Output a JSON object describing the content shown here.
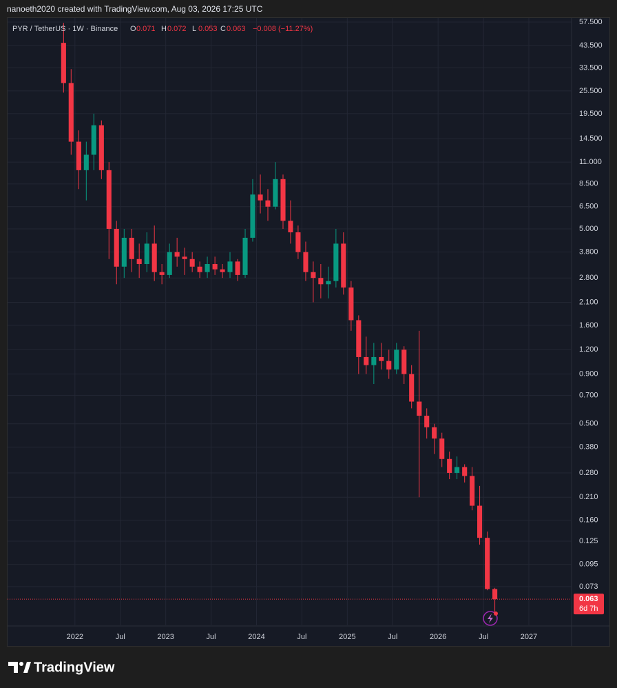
{
  "header": {
    "text": "nanoeth2020 created with TradingView.com, Aug 03, 2026 17:25 UTC"
  },
  "footer": {
    "logo": "TradingView"
  },
  "chart_data": {
    "type": "candlestick",
    "symbol": "PYR / TetherUS · 1W · Binance",
    "ohlc_legend": [
      {
        "label": "O",
        "value": 0.071
      },
      {
        "label": "H",
        "value": 0.072
      },
      {
        "label": "L",
        "value": 0.053
      },
      {
        "label": "C",
        "value": 0.063
      }
    ],
    "change": "−0.008 (−11.27%)",
    "last_price": 0.063,
    "countdown": "6d 7h",
    "log_scale": true,
    "grid": true,
    "up_color": "#089981",
    "down_color": "#f23645",
    "xlim": [
      2021.258,
      2027.47
    ],
    "ylim": [
      0.049,
      60.9
    ],
    "xticks": [
      {
        "value": 2022,
        "label": "2022"
      },
      {
        "value": 2022.5,
        "label": "Jul"
      },
      {
        "value": 2023,
        "label": "2023"
      },
      {
        "value": 2023.5,
        "label": "Jul"
      },
      {
        "value": 2024,
        "label": "2024"
      },
      {
        "value": 2024.5,
        "label": "Jul"
      },
      {
        "value": 2025,
        "label": "2025"
      },
      {
        "value": 2025.5,
        "label": "Jul"
      },
      {
        "value": 2026,
        "label": "2026"
      },
      {
        "value": 2026.5,
        "label": "Jul"
      },
      {
        "value": 2027,
        "label": "2027"
      }
    ],
    "yticks": [
      {
        "value": 57.5,
        "label": "57.500"
      },
      {
        "value": 43.5,
        "label": "43.500"
      },
      {
        "value": 33.5,
        "label": "33.500"
      },
      {
        "value": 25.5,
        "label": "25.500"
      },
      {
        "value": 19.5,
        "label": "19.500"
      },
      {
        "value": 14.5,
        "label": "14.500"
      },
      {
        "value": 11,
        "label": "11.000"
      },
      {
        "value": 8.5,
        "label": "8.500"
      },
      {
        "value": 6.5,
        "label": "6.500"
      },
      {
        "value": 5,
        "label": "5.000"
      },
      {
        "value": 3.8,
        "label": "3.800"
      },
      {
        "value": 2.8,
        "label": "2.800"
      },
      {
        "value": 2.1,
        "label": "2.100"
      },
      {
        "value": 1.6,
        "label": "1.600"
      },
      {
        "value": 1.2,
        "label": "1.200"
      },
      {
        "value": 0.9,
        "label": "0.900"
      },
      {
        "value": 0.7,
        "label": "0.700"
      },
      {
        "value": 0.5,
        "label": "0.500"
      },
      {
        "value": 0.38,
        "label": "0.380"
      },
      {
        "value": 0.28,
        "label": "0.280"
      },
      {
        "value": 0.21,
        "label": "0.210"
      },
      {
        "value": 0.16,
        "label": "0.160"
      },
      {
        "value": 0.125,
        "label": "0.125"
      },
      {
        "value": 0.095,
        "label": "0.095"
      },
      {
        "value": 0.073,
        "label": "0.073"
      }
    ],
    "x": [
      2021.875,
      2021.958,
      2022.042,
      2022.125,
      2022.208,
      2022.292,
      2022.375,
      2022.458,
      2022.542,
      2022.625,
      2022.708,
      2022.792,
      2022.875,
      2022.958,
      2023.042,
      2023.125,
      2023.208,
      2023.292,
      2023.375,
      2023.458,
      2023.542,
      2023.625,
      2023.708,
      2023.792,
      2023.875,
      2023.958,
      2024.042,
      2024.125,
      2024.208,
      2024.292,
      2024.375,
      2024.458,
      2024.542,
      2024.625,
      2024.708,
      2024.792,
      2024.875,
      2024.958,
      2025.042,
      2025.125,
      2025.208,
      2025.292,
      2025.375,
      2025.458,
      2025.542,
      2025.625,
      2025.708,
      2025.792,
      2025.875,
      2025.958,
      2026.042,
      2026.125,
      2026.208,
      2026.292,
      2026.375,
      2026.458,
      2026.542,
      2026.625
    ],
    "open": [
      45,
      28,
      14,
      10,
      12,
      17,
      10,
      5,
      3.2,
      4.5,
      3.5,
      3.3,
      4.2,
      3,
      2.9,
      3.8,
      3.6,
      3.5,
      3.2,
      3,
      3.3,
      3.1,
      3,
      3.4,
      2.9,
      4.5,
      7.5,
      7,
      6.5,
      9,
      5.5,
      4.8,
      3.8,
      3,
      2.8,
      2.6,
      2.7,
      4.2,
      2.5,
      1.7,
      1.1,
      1,
      1.1,
      1.05,
      0.95,
      1.2,
      0.9,
      0.65,
      0.55,
      0.48,
      0.42,
      0.33,
      0.28,
      0.3,
      0.27,
      0.19,
      0.13,
      0.071
    ],
    "high": [
      57,
      33,
      16,
      14,
      19.5,
      18,
      11,
      5.5,
      5,
      5,
      4.2,
      4.8,
      5.2,
      3.3,
      4.2,
      4.5,
      4,
      3.8,
      3.4,
      3.6,
      3.6,
      3.3,
      3.8,
      3.5,
      5,
      9,
      9.5,
      8,
      11,
      9.5,
      7,
      5.2,
      4.3,
      3.4,
      3.3,
      3.2,
      5,
      4.8,
      2.7,
      1.8,
      1.4,
      1.3,
      1.3,
      1.2,
      1.3,
      1.25,
      1,
      1.5,
      0.6,
      0.5,
      0.45,
      0.36,
      0.34,
      0.31,
      0.3,
      0.24,
      0.14,
      0.072
    ],
    "low": [
      25,
      12,
      8,
      7,
      10,
      9,
      3.5,
      2.6,
      2.8,
      3,
      2.8,
      3,
      2.7,
      2.6,
      2.8,
      3.2,
      2.9,
      3,
      2.8,
      2.8,
      2.9,
      2.8,
      2.8,
      2.7,
      2.8,
      4.3,
      6,
      5.5,
      6.3,
      5,
      4.2,
      3.5,
      2.7,
      2.1,
      2.2,
      2.2,
      2.5,
      2.3,
      1.5,
      0.9,
      0.9,
      0.8,
      0.95,
      0.85,
      0.9,
      0.8,
      0.6,
      0.21,
      0.42,
      0.35,
      0.3,
      0.26,
      0.26,
      0.25,
      0.18,
      0.12,
      0.07,
      0.053
    ],
    "close": [
      28,
      14,
      10,
      12,
      17,
      10,
      5,
      3.2,
      4.5,
      3.5,
      3.3,
      4.2,
      3,
      2.9,
      3.8,
      3.6,
      3.5,
      3.2,
      3,
      3.3,
      3.1,
      3,
      3.4,
      2.9,
      4.5,
      7.5,
      7,
      6.5,
      9,
      5.5,
      4.8,
      3.8,
      3,
      2.8,
      2.6,
      2.7,
      4.2,
      2.5,
      1.7,
      1.1,
      1,
      1.1,
      1.05,
      0.95,
      1.2,
      0.9,
      0.65,
      0.55,
      0.48,
      0.42,
      0.33,
      0.28,
      0.3,
      0.27,
      0.19,
      0.13,
      0.071,
      0.063
    ]
  }
}
